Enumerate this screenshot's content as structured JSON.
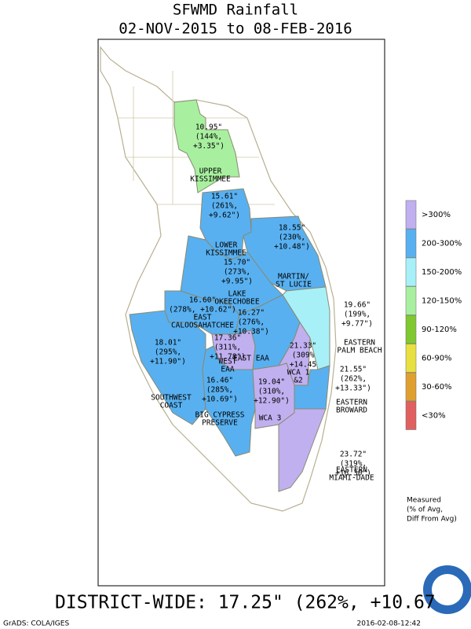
{
  "title": "SFWMD Rainfall",
  "subtitle": "02-NOV-2015 to 08-FEB-2016",
  "regions": [
    {
      "value_lines": [
        "10.95\"",
        "(144%,",
        "+3.35\")"
      ],
      "name_lines": [
        "UPPER",
        "KISSIMMEE"
      ],
      "color": "#a8f0a0"
    },
    {
      "value_lines": [
        "15.61\"",
        "(261%,",
        "+9.62\")"
      ],
      "name_lines": [
        "LOWER",
        "KISSIMMEE"
      ],
      "color": "#58b0f0"
    },
    {
      "value_lines": [
        "18.55\"",
        "(230%,",
        "+10.48\")"
      ],
      "name_lines": [
        "MARTIN/",
        "ST LUCIE"
      ],
      "color": "#58b0f0"
    },
    {
      "value_lines": [
        "15.70\"",
        "(273%,",
        "+9.95\")"
      ],
      "name_lines": [
        "LAKE",
        "OKEECHOBEE"
      ],
      "color": "#58b0f0"
    },
    {
      "value_lines": [
        "16.60\"",
        "(278%, +10.62\")"
      ],
      "name_lines": [
        "EAST",
        "CALOOSAHATCHEE"
      ],
      "color": "#58b0f0"
    },
    {
      "value_lines": [
        "19.66\"",
        "(199%,",
        "+9.77\")"
      ],
      "name_lines": [
        "EASTERN",
        "PALM BEACH"
      ],
      "color": "#a8f0f8"
    },
    {
      "value_lines": [
        "16.27\"",
        "(276%,",
        "+10.38\")"
      ],
      "name_lines": [
        "EAST EAA"
      ],
      "color": "#58b0f0"
    },
    {
      "value_lines": [
        "17.36\"",
        "(311%,",
        "+11.78\")"
      ],
      "name_lines": [
        "WEST",
        "EAA"
      ],
      "color": "#c0b0f0"
    },
    {
      "value_lines": [
        "21.33\"",
        "(309%",
        "+14.45"
      ],
      "name_lines": [
        "WCA 1",
        "&2"
      ],
      "color": "#c0b0f0"
    },
    {
      "value_lines": [
        "18.01\"",
        "(295%,",
        "+11.90\")"
      ],
      "name_lines": [
        "SOUTHWEST",
        "COAST"
      ],
      "color": "#58b0f0"
    },
    {
      "value_lines": [
        "16.46\"",
        "(285%,",
        "+10.69\")"
      ],
      "name_lines": [
        "BIG CYPRESS",
        "PRESERVE"
      ],
      "color": "#58b0f0"
    },
    {
      "value_lines": [
        "19.04\"",
        "(310%,",
        "+12.90\")"
      ],
      "name_lines": [
        "WCA 3"
      ],
      "color": "#c0b0f0"
    },
    {
      "value_lines": [
        "21.55\"",
        "(262%,",
        "+13.33\")"
      ],
      "name_lines": [
        "EASTERN",
        "BROWARD"
      ],
      "color": "#58b0f0"
    },
    {
      "value_lines": [
        "23.72\"",
        "(319%,",
        "+16.30\")"
      ],
      "name_lines": [
        "EASTERN",
        "MIAMI-DADE"
      ],
      "color": "#c0b0f0"
    }
  ],
  "legend": [
    {
      "label": ">300%",
      "color": "#c0b0f0"
    },
    {
      "label": "200-300%",
      "color": "#58b0f0"
    },
    {
      "label": "150-200%",
      "color": "#a8f0f8"
    },
    {
      "label": "120-150%",
      "color": "#a8f0a0"
    },
    {
      "label": "90-120%",
      "color": "#80c830"
    },
    {
      "label": "60-90%",
      "color": "#e8e040"
    },
    {
      "label": "30-60%",
      "color": "#e0a030"
    },
    {
      "label": "<30%",
      "color": "#e06060"
    }
  ],
  "note_lines": [
    "Measured",
    "(% of Avg,",
    "Diff From Avg)"
  ],
  "district_wide": "DISTRICT-WIDE: 17.25\"  (262%, +10.67",
  "credit": "GrADS: COLA/IGES",
  "timestamp": "2016-02-08-12:42"
}
